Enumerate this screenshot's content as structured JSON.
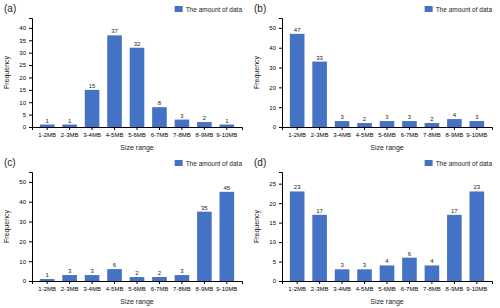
{
  "chart_data": [
    {
      "type": "bar",
      "title": "(a)",
      "categories": [
        "1-2MB",
        "2-3MB",
        "3-4MB",
        "4-5MB",
        "5-6MB",
        "6-7MB",
        "7-8MB",
        "8-9MB",
        "9-10MB"
      ],
      "series": [
        {
          "name": "The amount of data",
          "color": "#4472C4",
          "values": [
            1,
            1,
            15,
            37,
            32,
            8,
            3,
            2,
            1
          ]
        }
      ],
      "xlabel": "Size range",
      "ylabel": "Frequency",
      "ylim": [
        0,
        44
      ],
      "yticks": [
        0,
        5,
        10,
        15,
        20,
        25,
        30,
        35,
        40
      ],
      "legend": "upper-right",
      "data_labels": true,
      "grid": false
    },
    {
      "type": "bar",
      "title": "(b)",
      "categories": [
        "1-2MB",
        "2-3MB",
        "3-4MB",
        "4-5MB",
        "5-6MB",
        "6-7MB",
        "7-8MB",
        "8-9MB",
        "9-10MB"
      ],
      "series": [
        {
          "name": "The amount of data",
          "color": "#4472C4",
          "values": [
            47,
            33,
            3,
            2,
            3,
            3,
            2,
            4,
            3
          ]
        }
      ],
      "xlabel": "Size range",
      "ylabel": "Frequency",
      "ylim": [
        0,
        55
      ],
      "yticks": [
        0,
        10,
        20,
        30,
        40,
        50
      ],
      "legend": "upper-right",
      "data_labels": true,
      "grid": false
    },
    {
      "type": "bar",
      "title": "(c)",
      "categories": [
        "1-2MB",
        "2-3MB",
        "3-4MB",
        "4-5MB",
        "5-6MB",
        "6-7MB",
        "7-8MB",
        "8-9MB",
        "9-10MB"
      ],
      "series": [
        {
          "name": "The amount of data",
          "color": "#4472C4",
          "values": [
            1,
            3,
            3,
            6,
            2,
            2,
            3,
            35,
            45
          ]
        }
      ],
      "xlabel": "Size range",
      "ylabel": "Frequency",
      "ylim": [
        0,
        55
      ],
      "yticks": [
        0,
        10,
        20,
        30,
        40,
        50
      ],
      "legend": "upper-right",
      "data_labels": true,
      "grid": false
    },
    {
      "type": "bar",
      "title": "(d)",
      "categories": [
        "1-2MB",
        "2-3MB",
        "3-4MB",
        "4-5MB",
        "5-6MB",
        "6-7MB",
        "7-8MB",
        "8-9MB",
        "9-10MB"
      ],
      "series": [
        {
          "name": "The amount of data",
          "color": "#4472C4",
          "values": [
            23,
            17,
            3,
            3,
            4,
            6,
            4,
            17,
            23
          ]
        }
      ],
      "xlabel": "Size range",
      "ylabel": "Frequency",
      "ylim": [
        0,
        28
      ],
      "yticks": [
        0,
        5,
        10,
        15,
        20,
        25
      ],
      "legend": "upper-right",
      "data_labels": true,
      "grid": false
    }
  ]
}
